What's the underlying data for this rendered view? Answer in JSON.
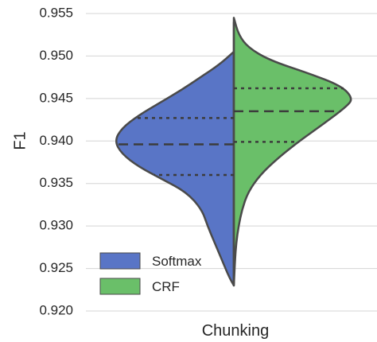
{
  "chart_data": {
    "type": "violin",
    "split": true,
    "xlabel": "",
    "ylabel": "F1",
    "ylim": [
      0.92,
      0.955
    ],
    "yticks": [
      "0.920",
      "0.925",
      "0.930",
      "0.935",
      "0.940",
      "0.945",
      "0.950",
      "0.955"
    ],
    "categories": [
      "Chunking"
    ],
    "grid": true,
    "legend_position": "lower-left",
    "series": [
      {
        "name": "Softmax",
        "side": "left",
        "color": "#5975c6",
        "quartiles": {
          "q1": 0.936,
          "median": 0.9396,
          "q3": 0.9427
        },
        "range": [
          0.923,
          0.9505
        ],
        "density_profile": [
          [
            0.923,
            0.0
          ],
          [
            0.924,
            0.04
          ],
          [
            0.926,
            0.1
          ],
          [
            0.928,
            0.16
          ],
          [
            0.93,
            0.22
          ],
          [
            0.932,
            0.27
          ],
          [
            0.934,
            0.4
          ],
          [
            0.9355,
            0.6
          ],
          [
            0.937,
            0.8
          ],
          [
            0.9385,
            0.94
          ],
          [
            0.94,
            1.0
          ],
          [
            0.9415,
            0.94
          ],
          [
            0.943,
            0.8
          ],
          [
            0.9445,
            0.62
          ],
          [
            0.946,
            0.44
          ],
          [
            0.9475,
            0.28
          ],
          [
            0.949,
            0.12
          ],
          [
            0.9505,
            0.0
          ]
        ]
      },
      {
        "name": "CRF",
        "side": "right",
        "color": "#6abf69",
        "quartiles": {
          "q1": 0.9399,
          "median": 0.9435,
          "q3": 0.9462
        },
        "range": [
          0.923,
          0.9545
        ],
        "density_profile": [
          [
            0.923,
            0.0
          ],
          [
            0.926,
            0.01
          ],
          [
            0.928,
            0.02
          ],
          [
            0.93,
            0.04
          ],
          [
            0.932,
            0.07
          ],
          [
            0.934,
            0.12
          ],
          [
            0.936,
            0.22
          ],
          [
            0.938,
            0.37
          ],
          [
            0.94,
            0.55
          ],
          [
            0.942,
            0.75
          ],
          [
            0.944,
            0.94
          ],
          [
            0.945,
            1.0
          ],
          [
            0.9465,
            0.9
          ],
          [
            0.948,
            0.62
          ],
          [
            0.9495,
            0.3
          ],
          [
            0.951,
            0.12
          ],
          [
            0.9525,
            0.04
          ],
          [
            0.9545,
            0.0
          ]
        ]
      }
    ]
  }
}
